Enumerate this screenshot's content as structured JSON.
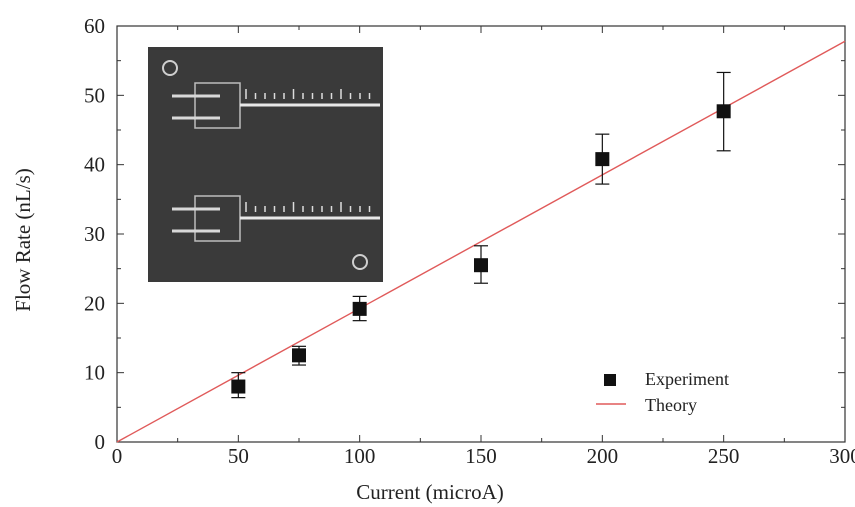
{
  "chart_data": {
    "type": "scatter",
    "xlabel": "Current (microA)",
    "ylabel": "Flow Rate (nL/s)",
    "xlim": [
      0,
      300
    ],
    "ylim": [
      0,
      60
    ],
    "x_ticks": [
      0,
      50,
      100,
      150,
      200,
      250,
      300
    ],
    "y_ticks": [
      0,
      10,
      20,
      30,
      40,
      50,
      60
    ],
    "grid": false,
    "legend_position": "lower-right",
    "series": [
      {
        "name": "Experiment",
        "kind": "markers-with-error-bars",
        "marker": "square",
        "color": "#111111",
        "x": [
          50,
          75,
          100,
          150,
          200,
          250
        ],
        "y": [
          8.0,
          12.5,
          19.2,
          25.5,
          40.8,
          47.7
        ],
        "y_err_low": [
          1.6,
          1.4,
          1.7,
          2.6,
          3.6,
          5.7
        ],
        "y_err_high": [
          2.0,
          1.3,
          1.8,
          2.8,
          3.6,
          5.6
        ]
      },
      {
        "name": "Theory",
        "kind": "line",
        "color": "#e05a5a",
        "x": [
          0,
          300
        ],
        "y": [
          0,
          57.8
        ]
      }
    ],
    "inset_image": {
      "description_icon": "microchannel-device-photo-icon",
      "tone": "#3a3a3a"
    }
  }
}
